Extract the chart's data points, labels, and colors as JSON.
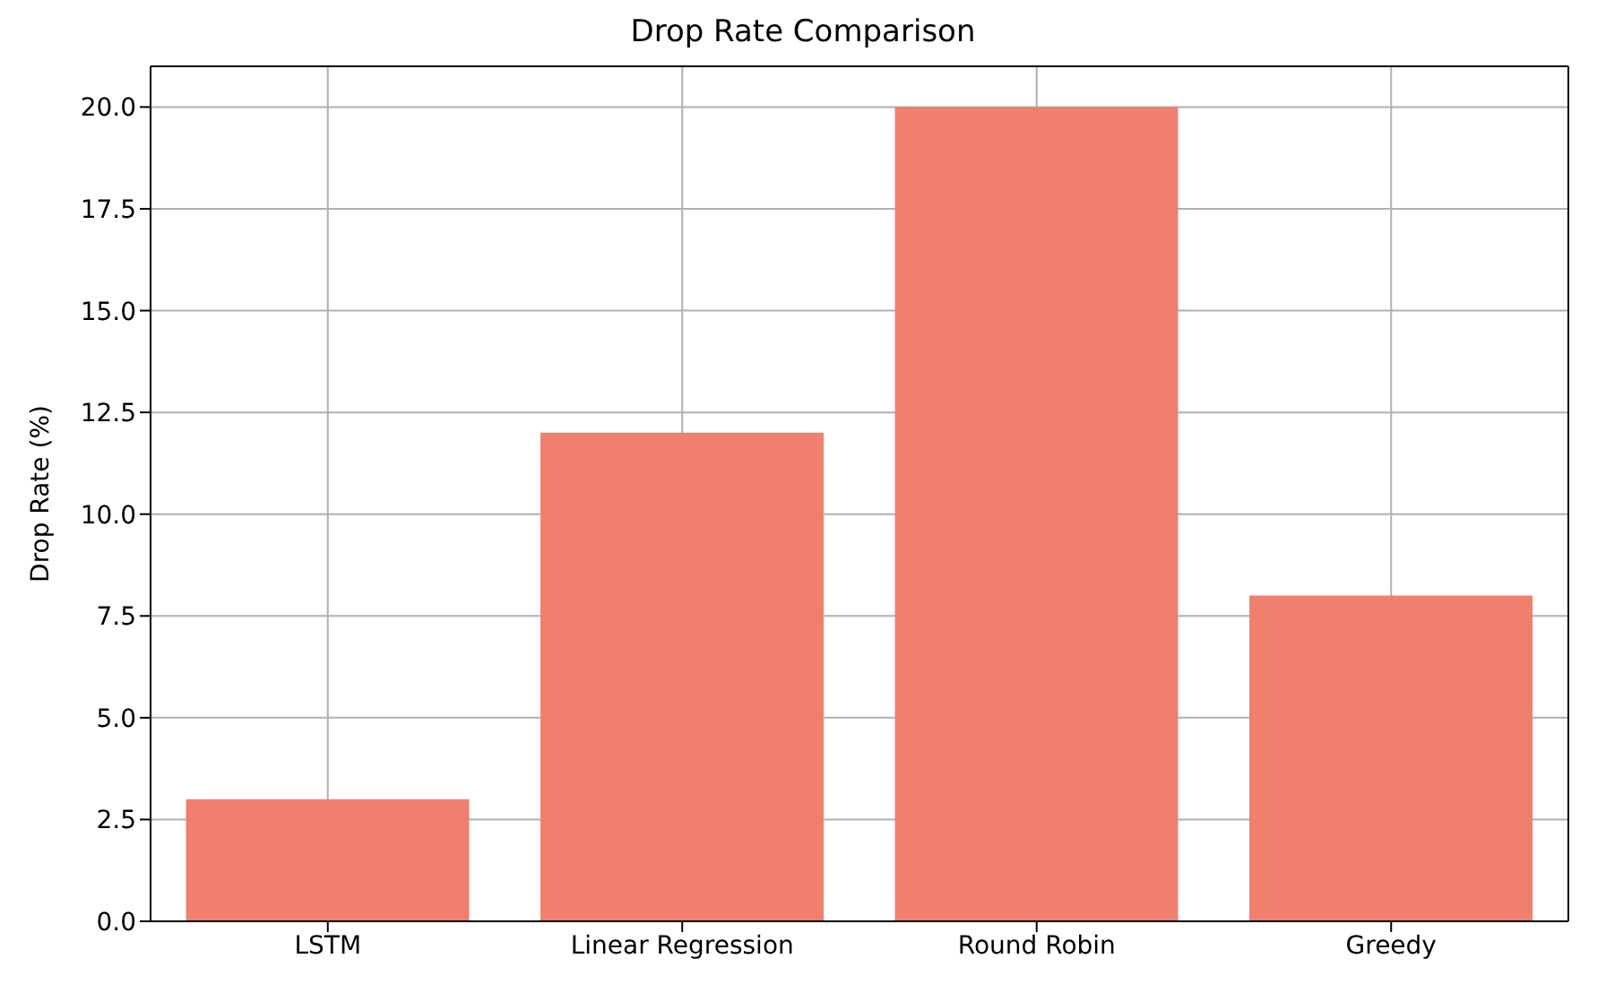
{
  "chart_data": {
    "type": "bar",
    "title": "Drop Rate Comparison",
    "ylabel": "Drop Rate (%)",
    "categories": [
      "LSTM",
      "Linear Regression",
      "Round Robin",
      "Greedy"
    ],
    "values": [
      3,
      12,
      20,
      8
    ],
    "color": "#f07f6e",
    "ylim": [
      0,
      21
    ],
    "yticks": [
      {
        "value": 0,
        "label": "0.0"
      },
      {
        "value": 2.5,
        "label": "2.5"
      },
      {
        "value": 5,
        "label": "5.0"
      },
      {
        "value": 7.5,
        "label": "7.5"
      },
      {
        "value": 10,
        "label": "10.0"
      },
      {
        "value": 12.5,
        "label": "12.5"
      },
      {
        "value": 15,
        "label": "15.0"
      },
      {
        "value": 17.5,
        "label": "17.5"
      },
      {
        "value": 20,
        "label": "20.0"
      }
    ],
    "grid": true
  }
}
